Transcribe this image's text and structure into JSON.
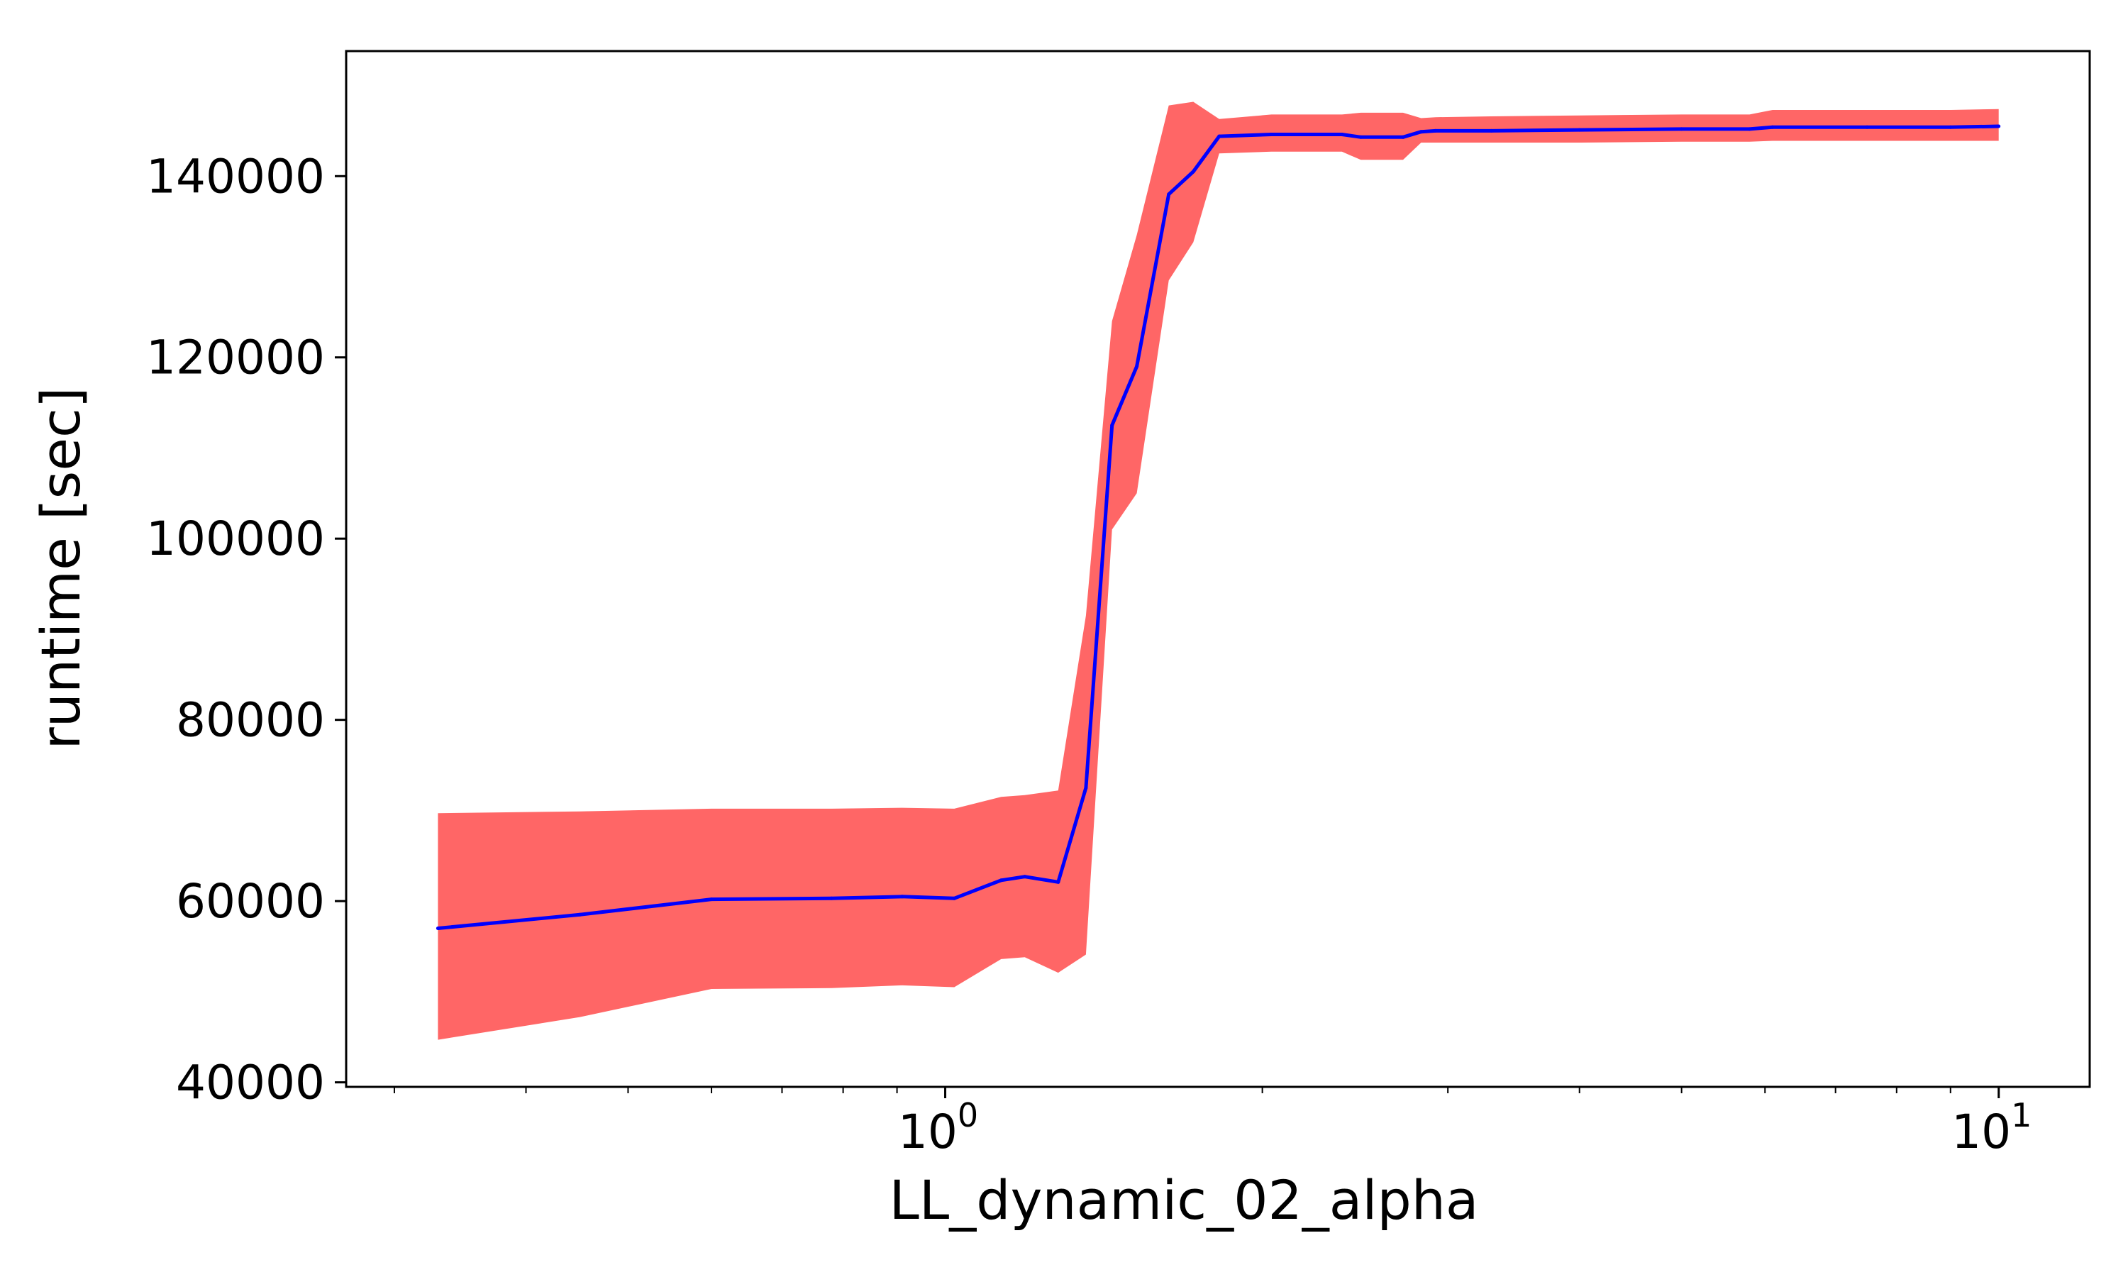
{
  "chart_data": {
    "type": "line",
    "xlabel": "LL_dynamic_02_alpha",
    "ylabel": "runtime [sec]",
    "xscale": "log",
    "xlim": [
      0.27,
      12.2
    ],
    "ylim": [
      39500,
      153800
    ],
    "grid": false,
    "legend": "none",
    "x_ticks": [
      {
        "value": 1,
        "base": "10",
        "exp": "0"
      },
      {
        "value": 10,
        "base": "10",
        "exp": "1"
      }
    ],
    "y_ticks": [
      {
        "value": 40000,
        "label": "40000"
      },
      {
        "value": 60000,
        "label": "60000"
      },
      {
        "value": 80000,
        "label": "80000"
      },
      {
        "value": 100000,
        "label": "100000"
      },
      {
        "value": 120000,
        "label": "120000"
      },
      {
        "value": 140000,
        "label": "140000"
      }
    ],
    "series": [
      {
        "color": "#0000ff",
        "band_color": "#ff6666",
        "x": [
          0.33,
          0.45,
          0.6,
          0.78,
          0.91,
          1.02,
          1.13,
          1.19,
          1.28,
          1.36,
          1.44,
          1.52,
          1.63,
          1.72,
          1.82,
          2.04,
          2.38,
          2.48,
          2.72,
          2.83,
          2.92,
          3.3,
          4.0,
          5.0,
          5.8,
          6.1,
          7.5,
          9.0,
          10.0
        ],
        "y": [
          57000,
          58500,
          60200,
          60300,
          60500,
          60300,
          62300,
          62700,
          62100,
          72500,
          112500,
          119000,
          138000,
          140500,
          144400,
          144600,
          144600,
          144300,
          144300,
          144900,
          145000,
          145000,
          145100,
          145200,
          145200,
          145400,
          145400,
          145400,
          145500
        ],
        "upper": [
          69700,
          69900,
          70200,
          70200,
          70300,
          70200,
          71500,
          71700,
          72200,
          91500,
          124000,
          133500,
          147800,
          148200,
          146300,
          146800,
          146800,
          147000,
          147000,
          146400,
          146500,
          146600,
          146700,
          146800,
          146800,
          147300,
          147300,
          147300,
          147400
        ],
        "lower": [
          44700,
          47200,
          50300,
          50400,
          50700,
          50500,
          53600,
          53800,
          52100,
          54100,
          101000,
          105000,
          128500,
          132700,
          142500,
          142700,
          142700,
          141800,
          141800,
          143700,
          143700,
          143700,
          143700,
          143800,
          143800,
          143900,
          143900,
          143900,
          143900
        ]
      }
    ]
  }
}
